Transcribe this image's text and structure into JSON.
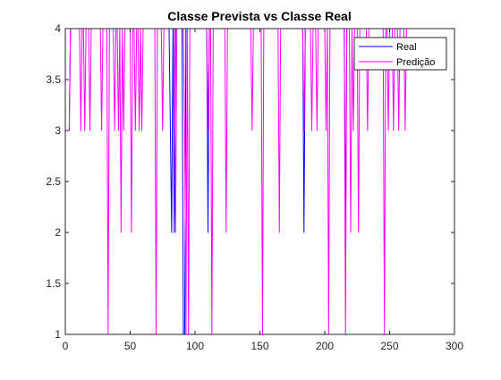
{
  "chart_data": {
    "type": "line",
    "title": "Classe Prevista vs Classe Real",
    "xlabel": "",
    "ylabel": "",
    "xlim": [
      0,
      300
    ],
    "ylim": [
      1,
      4
    ],
    "x_ticks": [
      0,
      50,
      100,
      150,
      200,
      250,
      300
    ],
    "y_ticks": [
      1,
      1.5,
      2,
      2.5,
      3,
      3.5,
      4
    ],
    "grid": false,
    "legend": {
      "position": "top-right",
      "entries": [
        "Real",
        "Predição"
      ]
    },
    "x_start": 1,
    "series": [
      {
        "name": "Real",
        "color": "#0000ff",
        "values": [
          3,
          3,
          3,
          4,
          4,
          4,
          4,
          4,
          4,
          4,
          4,
          4,
          4,
          4,
          4,
          4,
          4,
          4,
          4,
          4,
          4,
          4,
          4,
          4,
          4,
          4,
          4,
          4,
          4,
          4,
          4,
          4,
          4,
          4,
          4,
          4,
          4,
          4,
          4,
          4,
          4,
          4,
          4,
          4,
          4,
          4,
          4,
          4,
          4,
          4,
          4,
          4,
          4,
          4,
          4,
          4,
          4,
          4,
          4,
          4,
          4,
          4,
          4,
          4,
          4,
          4,
          4,
          4,
          4,
          4,
          4,
          4,
          4,
          4,
          4,
          4,
          4,
          4,
          4,
          4,
          3,
          2,
          4,
          2,
          4,
          4,
          4,
          4,
          4,
          4,
          1,
          1,
          4,
          4,
          4,
          4,
          4,
          4,
          4,
          4,
          4,
          4,
          4,
          4,
          4,
          4,
          4,
          4,
          4,
          2,
          4,
          4,
          4,
          4,
          4,
          4,
          4,
          4,
          4,
          4,
          4,
          4,
          4,
          4,
          4,
          4,
          4,
          4,
          4,
          4,
          4,
          4,
          4,
          4,
          4,
          4,
          4,
          4,
          4,
          4,
          4,
          4,
          4,
          4,
          4,
          4,
          4,
          4,
          4,
          4,
          4,
          4,
          4,
          4,
          4,
          4,
          4,
          4,
          4,
          4,
          4,
          4,
          4,
          4,
          4,
          4,
          4,
          4,
          4,
          4,
          4,
          4,
          4,
          4,
          4,
          4,
          4,
          4,
          4,
          4,
          4,
          4,
          4,
          2,
          4,
          4,
          4,
          4,
          4,
          4,
          4,
          4,
          4,
          4,
          4,
          4,
          4,
          4,
          4,
          4,
          4,
          4,
          4,
          4,
          4,
          4,
          4,
          4,
          4,
          4,
          4,
          4,
          4,
          4,
          4,
          2,
          4,
          4,
          4,
          4,
          4,
          4,
          4,
          4,
          4,
          4,
          4,
          4,
          4,
          4,
          4,
          4,
          4,
          4,
          4,
          4,
          4,
          4,
          4,
          4,
          4,
          4,
          4,
          4,
          4,
          4,
          4,
          4,
          4,
          4,
          4,
          4,
          4,
          4,
          4,
          4,
          4,
          4,
          4,
          4,
          4,
          4,
          4,
          4,
          4,
          4,
          4,
          4
        ]
      },
      {
        "name": "Predição",
        "color": "#ff00ff",
        "values": [
          3,
          3,
          3,
          4,
          4,
          4,
          4,
          4,
          4,
          4,
          4,
          3,
          4,
          4,
          3,
          4,
          4,
          4,
          3,
          4,
          4,
          4,
          4,
          4,
          4,
          4,
          4,
          3,
          4,
          4,
          4,
          4,
          1,
          4,
          4,
          4,
          4,
          3,
          4,
          4,
          3,
          4,
          2,
          4,
          3,
          4,
          4,
          4,
          4,
          4,
          2,
          4,
          4,
          3,
          4,
          4,
          3,
          4,
          3,
          4,
          4,
          4,
          4,
          4,
          4,
          4,
          4,
          4,
          4,
          1,
          4,
          4,
          4,
          4,
          3,
          4,
          4,
          4,
          4,
          4,
          4,
          4,
          4,
          4,
          2,
          4,
          4,
          4,
          4,
          4,
          4,
          3,
          1,
          4,
          1,
          4,
          4,
          4,
          4,
          4,
          4,
          4,
          4,
          4,
          4,
          4,
          4,
          4,
          4,
          3,
          4,
          4,
          1,
          4,
          4,
          4,
          4,
          4,
          4,
          4,
          4,
          4,
          4,
          2,
          4,
          4,
          4,
          4,
          4,
          4,
          4,
          4,
          4,
          4,
          4,
          4,
          4,
          4,
          4,
          4,
          4,
          4,
          4,
          3,
          4,
          4,
          4,
          4,
          4,
          4,
          4,
          1,
          4,
          4,
          4,
          4,
          4,
          4,
          4,
          4,
          4,
          4,
          4,
          4,
          2,
          4,
          4,
          4,
          4,
          4,
          4,
          4,
          4,
          4,
          4,
          4,
          4,
          4,
          4,
          4,
          4,
          4,
          4,
          3,
          4,
          4,
          4,
          4,
          4,
          3,
          4,
          4,
          4,
          3,
          4,
          4,
          4,
          4,
          4,
          4,
          3,
          4,
          1,
          4,
          4,
          4,
          4,
          4,
          4,
          4,
          4,
          4,
          4,
          4,
          4,
          1,
          4,
          4,
          4,
          2,
          4,
          3,
          4,
          4,
          4,
          2,
          4,
          4,
          4,
          4,
          4,
          4,
          3,
          4,
          4,
          4,
          4,
          4,
          4,
          4,
          4,
          4,
          4,
          4,
          4,
          1,
          4,
          4,
          3,
          4,
          4,
          4,
          3,
          4,
          4,
          4,
          3,
          4,
          4,
          4,
          4,
          3,
          4,
          4
        ]
      }
    ]
  }
}
